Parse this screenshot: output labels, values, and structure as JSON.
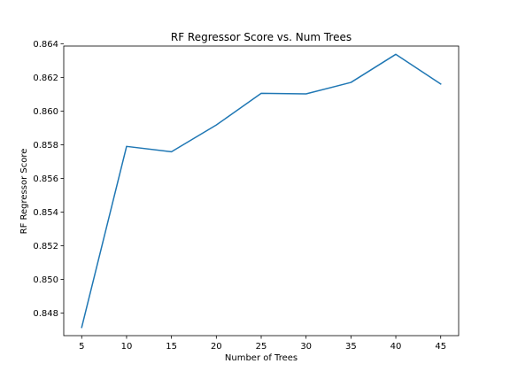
{
  "chart_data": {
    "type": "line",
    "title": "RF Regressor Score vs. Num Trees",
    "xlabel": "Number of Trees",
    "ylabel": "RF Regressor Score",
    "x": [
      5,
      10,
      15,
      20,
      25,
      30,
      35,
      40,
      45
    ],
    "series": [
      {
        "color": "#1f77b4",
        "values": [
          0.84715,
          0.8579,
          0.85758,
          0.85917,
          0.86105,
          0.86102,
          0.8617,
          0.86337,
          0.86161
        ]
      }
    ],
    "xticks": [
      "5",
      "10",
      "15",
      "20",
      "25",
      "30",
      "35",
      "40",
      "45"
    ],
    "yticks": [
      "0.848",
      "0.850",
      "0.852",
      "0.854",
      "0.856",
      "0.858",
      "0.860",
      "0.862",
      "0.864"
    ],
    "xlim": [
      3,
      47
    ],
    "ylim": [
      0.84666,
      0.86386
    ],
    "grid": false,
    "legend": "none"
  }
}
